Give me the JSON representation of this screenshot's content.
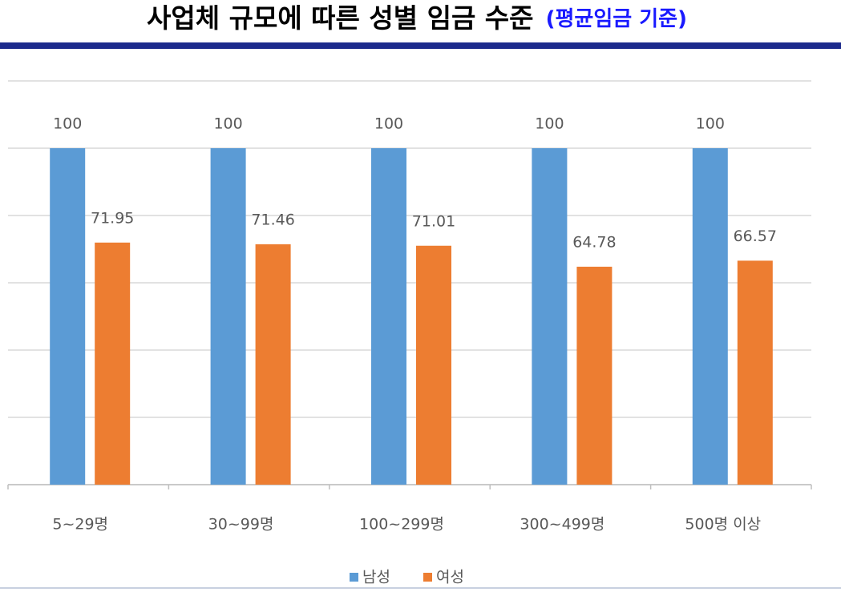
{
  "chart_data": {
    "type": "bar",
    "title": "사업체 규모에 따른 성별 임금 수준",
    "subtitle": "(평균임금 기준)",
    "categories": [
      "5~29명",
      "30~99명",
      "100~299명",
      "300~499명",
      "500명 이상"
    ],
    "series": [
      {
        "name": "남성",
        "color": "#5b9bd5",
        "values": [
          100,
          100,
          100,
          100,
          100
        ]
      },
      {
        "name": "여성",
        "color": "#ed7d31",
        "values": [
          71.95,
          71.46,
          71.01,
          64.78,
          66.57
        ]
      }
    ],
    "ylim": [
      0,
      120
    ],
    "yticks": [
      0,
      20,
      40,
      60,
      80,
      100,
      120
    ],
    "grid": true
  }
}
